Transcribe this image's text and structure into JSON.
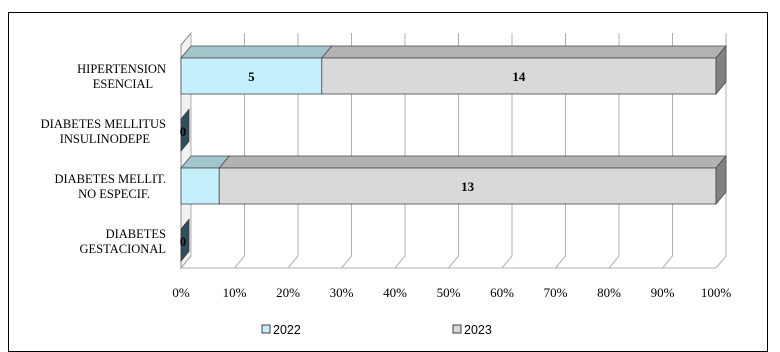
{
  "chart_data": {
    "type": "bar",
    "orientation": "horizontal",
    "stacking": "percent",
    "style": "3d",
    "categories": [
      "HIPERTENSION ESENCIAL",
      "DIABETES MELLITUS INSULINODEPE",
      "DIABETES MELLIT. NO ESPECIF.",
      "DIABETES GESTACIONAL"
    ],
    "series": [
      {
        "name": "2022",
        "values": [
          5,
          0,
          1,
          0
        ],
        "labels": [
          "5",
          "0",
          "",
          "0"
        ],
        "color": "#c5f0fb"
      },
      {
        "name": "2023",
        "values": [
          14,
          0,
          13,
          0
        ],
        "labels": [
          "14",
          "",
          "13",
          ""
        ],
        "color": "#d9d9d9"
      }
    ],
    "xticks": [
      "0%",
      "10%",
      "20%",
      "30%",
      "40%",
      "50%",
      "60%",
      "70%",
      "80%",
      "90%",
      "100%"
    ],
    "xlim": [
      0,
      100
    ],
    "grid": true,
    "legend_position": "bottom",
    "title": "",
    "xlabel": "",
    "ylabel": ""
  }
}
